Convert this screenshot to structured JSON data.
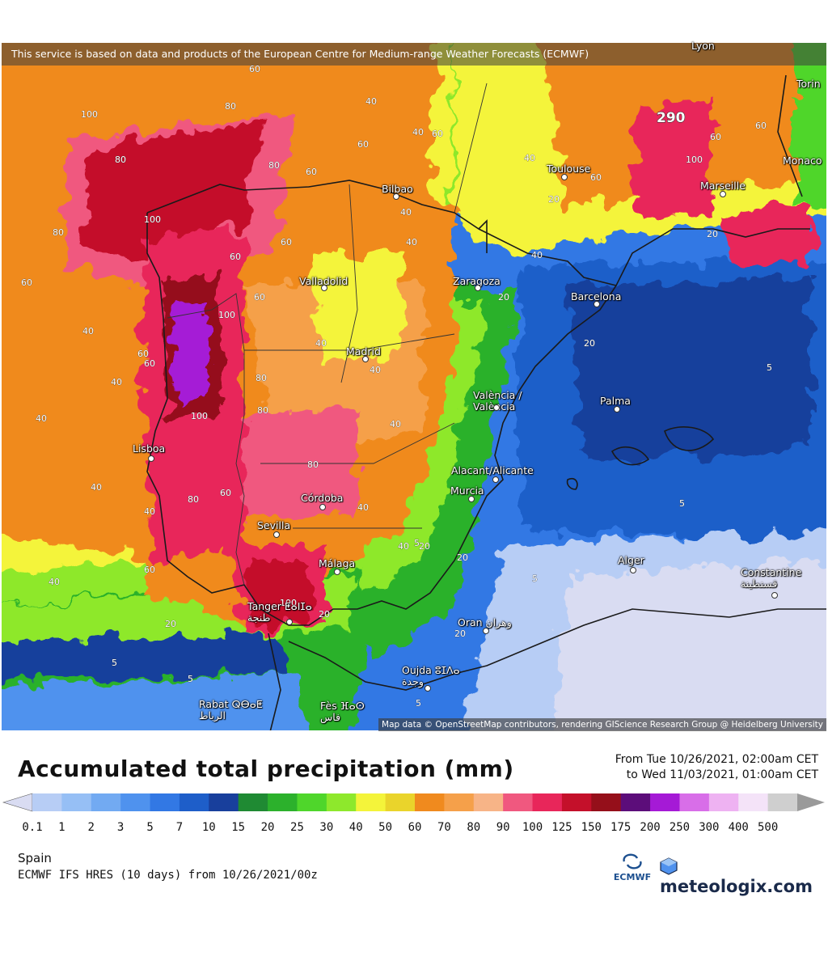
{
  "map": {
    "credit_top": "This service is based on data and products of the European Centre for Medium-range Weather Forecasts (ECMWF)",
    "credit_bottom": "Map data © OpenStreetMap contributors, rendering GIScience Research Group @ Heidelberg University",
    "cities": [
      {
        "id": "lyon",
        "label": "Lyon"
      },
      {
        "id": "torino",
        "label": "Torin"
      },
      {
        "id": "monaco",
        "label": "Monaco"
      },
      {
        "id": "toulouse",
        "label": "Toulouse"
      },
      {
        "id": "marseille",
        "label": "Marseille"
      },
      {
        "id": "bilbao",
        "label": "Bilbao"
      },
      {
        "id": "zaragoza",
        "label": "Zaragoza"
      },
      {
        "id": "barcelona",
        "label": "Barcelona"
      },
      {
        "id": "valladolid",
        "label": "Valladolid"
      },
      {
        "id": "madrid",
        "label": "Madrid"
      },
      {
        "id": "valencia",
        "label": "València /\nValència"
      },
      {
        "id": "palma",
        "label": "Palma"
      },
      {
        "id": "lisboa",
        "label": "Lisboa"
      },
      {
        "id": "alicante",
        "label": "Alacant/Alicante"
      },
      {
        "id": "murcia",
        "label": "Murcia"
      },
      {
        "id": "cordoba",
        "label": "Córdoba"
      },
      {
        "id": "sevilla",
        "label": "Sevilla"
      },
      {
        "id": "malaga",
        "label": "Málaga"
      },
      {
        "id": "tanger",
        "label": "Tanger ⵟⴰⵏⵊⴰ\nطنجة"
      },
      {
        "id": "alger",
        "label": "Alger"
      },
      {
        "id": "constantine",
        "label": "Constantine\nقسنطينة"
      },
      {
        "id": "oran",
        "label": "Oran وهران"
      },
      {
        "id": "oujda",
        "label": "Oujda ⵓⵊⴷⴰ\nوجدة"
      },
      {
        "id": "rabat",
        "label": "Rabat ⵕⴱⴰⵟ\nالرباط"
      },
      {
        "id": "fes",
        "label": "Fès ⴼⴰⵙ\nفاس"
      }
    ],
    "peak_label": "290"
  },
  "legend": {
    "title": "Accumulated total precipitation (mm)",
    "period_from": "From Tue 10/26/2021, 02:00am CET",
    "period_to": "to Wed 11/03/2021, 01:00am CET",
    "ticks": [
      "0.1",
      "1",
      "2",
      "3",
      "5",
      "7",
      "10",
      "15",
      "20",
      "25",
      "30",
      "40",
      "50",
      "60",
      "70",
      "80",
      "90",
      "100",
      "125",
      "150",
      "175",
      "200",
      "250",
      "300",
      "400",
      "500"
    ],
    "colors": [
      "#d9dcf2",
      "#b7cdf5",
      "#96bff5",
      "#72aaf2",
      "#4f92ee",
      "#3278e4",
      "#1e5ec9",
      "#183f9c",
      "#1f8a33",
      "#2cb12c",
      "#4fd62b",
      "#8ee82c",
      "#f4f43a",
      "#ead42b",
      "#f08a1e",
      "#f5a04a",
      "#f7b487",
      "#f0587f",
      "#e8265a",
      "#c4102a",
      "#950f1a",
      "#5c0d7a",
      "#a51ad6",
      "#d86ee8",
      "#eeb2f2",
      "#f4e3f8",
      "#cfcfcf",
      "#9a9a9a"
    ]
  },
  "footer": {
    "region": "Spain",
    "model": "ECMWF IFS HRES (10 days) from 10/26/2021/00z",
    "ecmwf_logo": "ECMWF",
    "brand": "meteologix.com"
  }
}
